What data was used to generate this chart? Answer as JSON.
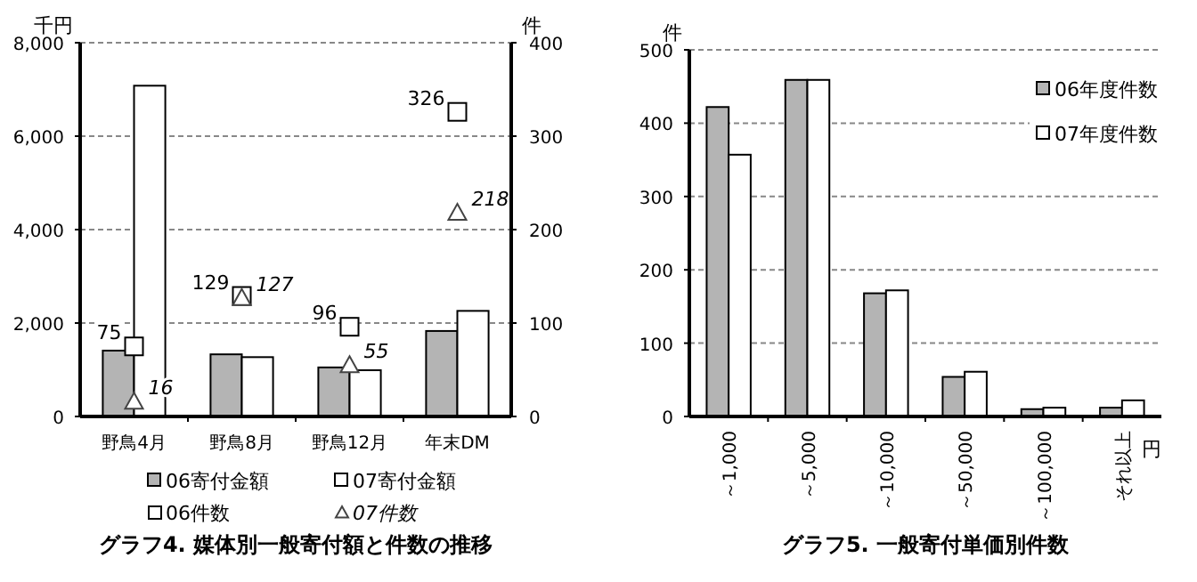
{
  "chart_data": [
    {
      "type": "bar",
      "title": "グラフ4. 媒体別一般寄付額と件数の推移",
      "ylabel": "千円",
      "y2label": "件",
      "categories": [
        "野鳥4月",
        "野鳥8月",
        "野鳥12月",
        "年末DM"
      ],
      "series": [
        {
          "name": "06寄付金額",
          "color": "#b4b4b4",
          "values": [
            1410,
            1330,
            1050,
            1830
          ]
        },
        {
          "name": "07寄付金額",
          "color": "#ffffff",
          "values": [
            7080,
            1270,
            990,
            2260
          ]
        },
        {
          "name": "06件数",
          "type": "scatter",
          "axis": "y2",
          "marker": "square",
          "color": "#ffffff",
          "values": [
            75,
            129,
            96,
            326
          ],
          "value_labels": [
            "75",
            "129",
            "96",
            "326"
          ]
        },
        {
          "name": "07件数",
          "type": "scatter",
          "axis": "y2",
          "marker": "triangle",
          "color": "#ffffff",
          "values": [
            16,
            127,
            55,
            218
          ],
          "value_labels": [
            "16",
            "127",
            "55",
            "218"
          ]
        }
      ],
      "ylim": [
        0,
        8000
      ],
      "yticks": [
        0,
        {
          "value": 2000,
          "label": "2,000"
        },
        {
          "value": 4000,
          "label": "4,000"
        },
        {
          "value": 6000,
          "label": "6,000"
        },
        {
          "value": 8000,
          "label": "8,000"
        }
      ],
      "y2lim": [
        0,
        400
      ],
      "y2ticks": [
        0,
        100,
        200,
        300,
        400
      ],
      "grid": "y",
      "legend": "bottom"
    },
    {
      "type": "bar",
      "title": "グラフ5. 一般寄付単価別件数",
      "ylabel": "件",
      "xlabel": "円",
      "categories": [
        "～1,000",
        "～5,000",
        "～10,000",
        "～50,000",
        "～100,000",
        "それ以上"
      ],
      "series": [
        {
          "name": "06年度件数",
          "color": "#b4b4b4",
          "values": [
            422,
            459,
            168,
            54,
            10,
            12
          ]
        },
        {
          "name": "07年度件数",
          "color": "#ffffff",
          "values": [
            357,
            459,
            172,
            61,
            12,
            22
          ]
        }
      ],
      "ylim": [
        0,
        500
      ],
      "yticks": [
        0,
        100,
        200,
        300,
        400,
        500
      ],
      "grid": "y",
      "legend": "top right"
    }
  ]
}
